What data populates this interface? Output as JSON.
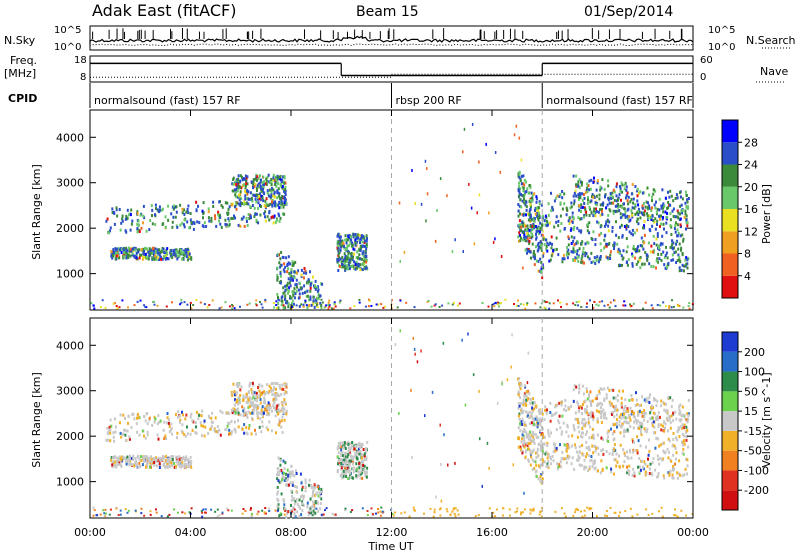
{
  "header": {
    "title": "Adak East (fitACF)",
    "beam": "Beam 15",
    "date": "01/Sep/2014"
  },
  "left_labels": {
    "nsky": "N.Sky",
    "freq": "Freq.",
    "freq_unit": "[MHz]",
    "cpid": "CPID"
  },
  "right_labels": {
    "nsearch": "N.Search",
    "nave": "Nave"
  },
  "cpid_segments": [
    {
      "label": "normalsound (fast) 157 RF",
      "start_h": 0,
      "end_h": 12
    },
    {
      "label": "rbsp 200 RF",
      "start_h": 12,
      "end_h": 18
    },
    {
      "label": "normalsound (fast) 157 RF",
      "start_h": 18,
      "end_h": 24
    }
  ],
  "chart_data": [
    {
      "type": "line",
      "name": "noise",
      "ylabel_left": "N.Sky",
      "ylabel_right": "N.Search",
      "ytick_left": [
        "10^5",
        "10^0"
      ],
      "ytick_right": [
        "10^5",
        "10^0"
      ]
    },
    {
      "type": "line",
      "name": "frequency",
      "ylabel_left": "Freq. [MHz]",
      "ylabel_right": "Nave",
      "yticks_left": [
        8,
        18
      ],
      "yticks_right": [
        0,
        60
      ],
      "freq_segments": [
        {
          "start_h": 0,
          "end_h": 10,
          "value": 16
        },
        {
          "start_h": 10,
          "end_h": 18,
          "value": 9.5
        },
        {
          "start_h": 18,
          "end_h": 24,
          "value": 16
        }
      ],
      "nave_segments": [
        {
          "start_h": 0,
          "end_h": 12,
          "value": 11
        },
        {
          "start_h": 12,
          "end_h": 24,
          "value": 18
        }
      ]
    },
    {
      "type": "heatmap",
      "name": "power",
      "ylabel": "Slant Range [km]",
      "yticks": [
        1000,
        2000,
        3000,
        4000
      ],
      "ylim": [
        200,
        4600
      ],
      "xlim": [
        0,
        24
      ],
      "colorbar_label": "Power [dB]",
      "colorbar_ticks": [
        4,
        8,
        12,
        16,
        20,
        24,
        28
      ],
      "colorbar_colors": [
        "#0000ff",
        "#2a4ec8",
        "#3b8a3b",
        "#69c869",
        "#e8e020",
        "#f0a020",
        "#f06020",
        "#e01010"
      ]
    },
    {
      "type": "heatmap",
      "name": "velocity",
      "ylabel": "Slant Range [km]",
      "yticks": [
        1000,
        2000,
        3000,
        4000
      ],
      "ylim": [
        200,
        4600
      ],
      "xlim": [
        0,
        24
      ],
      "xlabel": "Time UT",
      "xticks": [
        "00:00",
        "04:00",
        "08:00",
        "12:00",
        "16:00",
        "20:00",
        "00:00"
      ],
      "colorbar_label": "Velocity [m s^-1]",
      "colorbar_ticks": [
        200,
        100,
        50,
        15,
        -15,
        -50,
        -100,
        -200
      ],
      "colorbar_colors": [
        "#1e3cd2",
        "#286ec8",
        "#2e8c4a",
        "#6ad24c",
        "#c8c8c8",
        "#f0b028",
        "#f08020",
        "#e03020",
        "#d01010"
      ]
    }
  ]
}
